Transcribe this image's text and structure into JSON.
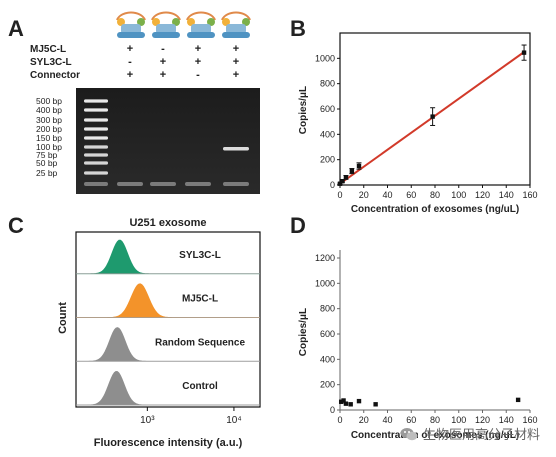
{
  "panels": {
    "A": {
      "label": "A",
      "row_labels": [
        "MJ5C-L",
        "SYL3C-L",
        "Connector"
      ],
      "matrix": [
        [
          "+",
          "-",
          "+",
          "+"
        ],
        [
          "-",
          "+",
          "+",
          "+"
        ],
        [
          "+",
          "+",
          "-",
          "+"
        ]
      ],
      "ladder": [
        "500 bp",
        "400 bp",
        "300 bp",
        "200 bp",
        "150 bp",
        "100 bp",
        "75 bp",
        "50 bp",
        "25 bp"
      ]
    },
    "B": {
      "label": "B"
    },
    "C": {
      "label": "C"
    },
    "D": {
      "label": "D"
    }
  },
  "watermark": "生物医用高分子材料",
  "chart_data": [
    {
      "panel": "B",
      "type": "scatter",
      "xlabel": "Concentration of exosomes (ng/uL)",
      "ylabel": "Copies/μL",
      "xlim": [
        0,
        160
      ],
      "ylim": [
        0,
        1200
      ],
      "xticks": [
        0,
        20,
        40,
        60,
        80,
        100,
        120,
        140,
        160
      ],
      "yticks": [
        0,
        200,
        400,
        600,
        800,
        1000
      ],
      "series": [
        {
          "x": [
            0,
            2,
            5,
            10,
            16,
            78,
            155
          ],
          "y": [
            10,
            30,
            60,
            110,
            150,
            540,
            1045
          ],
          "err": [
            5,
            8,
            15,
            20,
            25,
            70,
            60
          ]
        }
      ],
      "fit_line": {
        "x": [
          0,
          155
        ],
        "y": [
          10,
          1050
        ],
        "color": "#d23a2a"
      }
    },
    {
      "panel": "C",
      "type": "area",
      "title": "U251 exosome",
      "xlabel": "Fluorescence intensity (a.u.)",
      "ylabel": "Count",
      "xscale": "log",
      "xticks": [
        "10³",
        "10⁴"
      ],
      "series": [
        {
          "name": "SYL3C-L",
          "color": "#1e9a6e",
          "peak": 480,
          "width": 0.09
        },
        {
          "name": "MJ5C-L",
          "color": "#f3932a",
          "peak": 820,
          "width": 0.1
        },
        {
          "name": "Random Sequence",
          "color": "#8e8e8e",
          "peak": 450,
          "width": 0.09
        },
        {
          "name": "Control",
          "color": "#8e8e8e",
          "peak": 440,
          "width": 0.09
        }
      ]
    },
    {
      "panel": "D",
      "type": "scatter",
      "xlabel": "Concentration of exosomes (ng/uL)",
      "ylabel": "Copies/μL",
      "xlim": [
        0,
        160
      ],
      "ylim": [
        0,
        1200
      ],
      "xticks": [
        0,
        20,
        40,
        60,
        80,
        100,
        120,
        140,
        160
      ],
      "yticks": [
        0,
        200,
        400,
        600,
        800,
        1000,
        1200
      ],
      "series": [
        {
          "x": [
            1,
            3,
            5,
            9,
            16,
            30,
            150
          ],
          "y": [
            65,
            75,
            50,
            45,
            70,
            45,
            80
          ]
        }
      ]
    }
  ]
}
